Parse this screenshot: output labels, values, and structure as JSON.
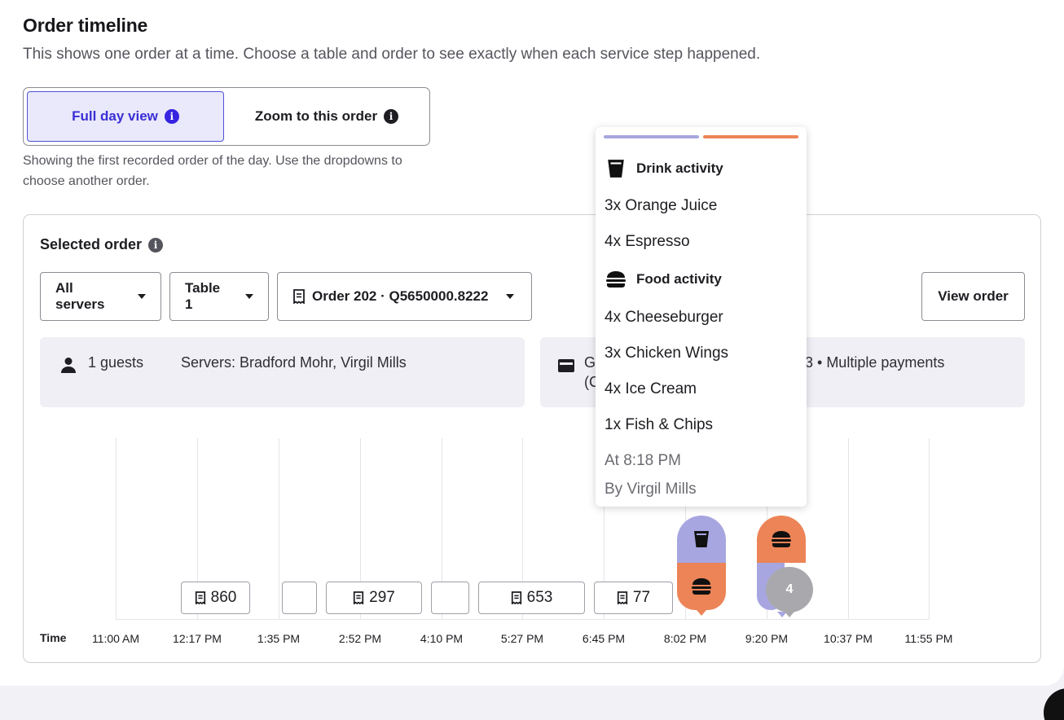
{
  "header": {
    "title": "Order timeline",
    "subtitle": "This shows one order at a time. Choose a table and order to see exactly when each service step happened."
  },
  "view_toggle": {
    "full_day": "Full day view",
    "zoom": "Zoom to this order",
    "active": "full_day",
    "hint": "Showing the first recorded order of the day. Use the dropdowns to choose another order."
  },
  "panel": {
    "title": "Selected order",
    "filters": {
      "server": "All servers",
      "table": "Table 1",
      "order": "Order 202 · Q5650000.8222"
    },
    "view_order": "View order",
    "guests": "1 guests",
    "servers": "Servers: Bradford Mohr, Virgil Mills",
    "payment_left": "G",
    "payment_left_line2": "(C",
    "payment_right": "3 • Multiple payments"
  },
  "timeline": {
    "time_label": "Time",
    "ticks": [
      "11:00 AM",
      "12:17 PM",
      "1:35 PM",
      "2:52 PM",
      "4:10 PM",
      "5:27 PM",
      "6:45 PM",
      "8:02 PM",
      "9:20 PM",
      "10:37 PM",
      "11:55 PM"
    ],
    "order_tags": [
      "860",
      "",
      "297",
      "",
      "653",
      "77"
    ],
    "cluster_count": "4"
  },
  "popup": {
    "drink_heading": "Drink activity",
    "drink_items": [
      "3x Orange Juice",
      "4x Espresso"
    ],
    "food_heading": "Food activity",
    "food_items": [
      "4x Cheeseburger",
      "3x Chicken Wings",
      "4x Ice Cream",
      "1x Fish & Chips"
    ],
    "time": "At 8:18 PM",
    "by": "By Virgil Mills"
  },
  "colors": {
    "accent": "#3624e0",
    "drink": "#a7a6e0",
    "food": "#ec8457"
  }
}
